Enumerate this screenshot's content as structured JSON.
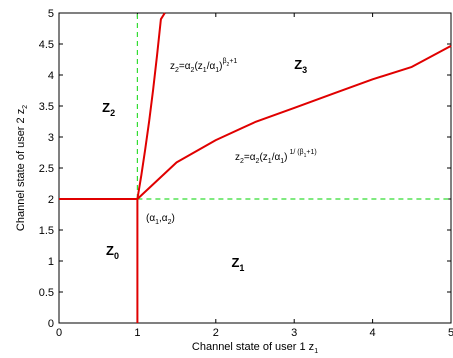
{
  "chart_data": {
    "type": "line",
    "title": "",
    "xlabel": "Channel state of user 1 z",
    "xlabel_sub": "1",
    "ylabel": "Channel state of user 2 z",
    "ylabel_sub": "2",
    "xlim": [
      0,
      5
    ],
    "ylim": [
      0,
      5
    ],
    "xticks": [
      0,
      1,
      2,
      3,
      4,
      5
    ],
    "yticks": [
      0,
      0.5,
      1,
      1.5,
      2,
      2.5,
      3,
      3.5,
      4,
      4.5,
      5
    ],
    "xtick_labels": [
      "0",
      "1",
      "2",
      "3",
      "4",
      "5"
    ],
    "ytick_labels": [
      "0",
      "0.5",
      "1",
      "1.5",
      "2",
      "2.5",
      "3",
      "3.5",
      "4",
      "4.5",
      "5"
    ],
    "grid": false,
    "colors": {
      "boundary": "#e00000",
      "dashed": "#33dd33"
    },
    "boundaries": [
      {
        "style": "solid",
        "x": [
          0,
          1
        ],
        "y": [
          2,
          2
        ]
      },
      {
        "style": "solid",
        "x": [
          1,
          1
        ],
        "y": [
          0,
          2
        ]
      },
      {
        "style": "solid",
        "x": [
          1,
          1.05,
          1.1,
          1.15,
          1.2,
          1.25,
          1.3,
          1.35
        ],
        "y": [
          2,
          2.38,
          2.8,
          3.26,
          3.76,
          4.31,
          4.9,
          5.0
        ]
      },
      {
        "style": "solid",
        "x": [
          1,
          1.5,
          2,
          2.5,
          3,
          3.5,
          4,
          4.5,
          5
        ],
        "y": [
          2,
          2.59,
          2.95,
          3.24,
          3.47,
          3.7,
          3.93,
          4.13,
          4.47
        ]
      },
      {
        "style": "dashed",
        "x": [
          1,
          1
        ],
        "y": [
          2,
          5
        ]
      },
      {
        "style": "dashed",
        "x": [
          1,
          5
        ],
        "y": [
          2,
          2
        ]
      }
    ],
    "region_labels": [
      {
        "main": "Z",
        "sub": "0",
        "x": 0.6,
        "y": 1.1
      },
      {
        "main": "Z",
        "sub": "1",
        "x": 2.2,
        "y": 0.9
      },
      {
        "main": "Z",
        "sub": "2",
        "x": 0.55,
        "y": 3.4
      },
      {
        "main": "Z",
        "sub": "3",
        "x": 3.0,
        "y": 4.1
      }
    ],
    "annotations": {
      "upper_curve": "z2=α2(z1/α1)^(β2+1)",
      "lower_curve": "z2=α2(z1/α1)^(1/(β1+1))",
      "corner_point": "(α1,α2)"
    }
  }
}
